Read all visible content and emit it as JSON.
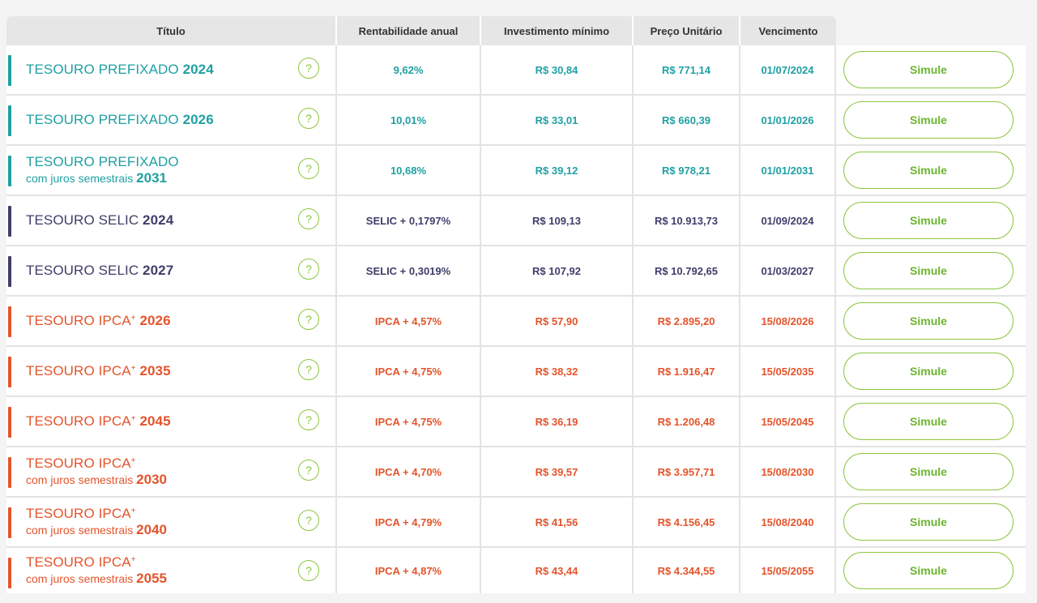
{
  "header": {
    "titulo": "Título",
    "rentabilidade": "Rentabilidade anual",
    "investimento": "Investimento mínimo",
    "preco": "Preço Unitário",
    "vencimento": "Vencimento"
  },
  "colors": {
    "prefixado": "#1fa0a3",
    "selic": "#3f3e6a",
    "ipca": "#e4542b",
    "accent_green": "#8dc63f"
  },
  "help_symbol": "?",
  "button_label": "Simule",
  "rows": [
    {
      "name": "TESOURO PREFIXADO",
      "sup": "",
      "sub": "",
      "year": "2024",
      "rent": "9,62%",
      "inv": "R$ 30,84",
      "price": "R$ 771,14",
      "venc": "01/07/2024",
      "type": "prefixado"
    },
    {
      "name": "TESOURO PREFIXADO",
      "sup": "",
      "sub": "",
      "year": "2026",
      "rent": "10,01%",
      "inv": "R$ 33,01",
      "price": "R$ 660,39",
      "venc": "01/01/2026",
      "type": "prefixado"
    },
    {
      "name": "TESOURO PREFIXADO",
      "sup": "",
      "sub": "com juros semestrais",
      "year": "2031",
      "rent": "10,68%",
      "inv": "R$ 39,12",
      "price": "R$ 978,21",
      "venc": "01/01/2031",
      "type": "prefixado"
    },
    {
      "name": "TESOURO SELIC",
      "sup": "",
      "sub": "",
      "year": "2024",
      "rent": "SELIC + 0,1797%",
      "inv": "R$ 109,13",
      "price": "R$ 10.913,73",
      "venc": "01/09/2024",
      "type": "selic"
    },
    {
      "name": "TESOURO SELIC",
      "sup": "",
      "sub": "",
      "year": "2027",
      "rent": "SELIC + 0,3019%",
      "inv": "R$ 107,92",
      "price": "R$ 10.792,65",
      "venc": "01/03/2027",
      "type": "selic"
    },
    {
      "name": "TESOURO IPCA",
      "sup": "+",
      "sub": "",
      "year": "2026",
      "rent": "IPCA + 4,57%",
      "inv": "R$ 57,90",
      "price": "R$ 2.895,20",
      "venc": "15/08/2026",
      "type": "ipca"
    },
    {
      "name": "TESOURO IPCA",
      "sup": "+",
      "sub": "",
      "year": "2035",
      "rent": "IPCA + 4,75%",
      "inv": "R$ 38,32",
      "price": "R$ 1.916,47",
      "venc": "15/05/2035",
      "type": "ipca"
    },
    {
      "name": "TESOURO IPCA",
      "sup": "+",
      "sub": "",
      "year": "2045",
      "rent": "IPCA + 4,75%",
      "inv": "R$ 36,19",
      "price": "R$ 1.206,48",
      "venc": "15/05/2045",
      "type": "ipca"
    },
    {
      "name": "TESOURO IPCA",
      "sup": "+",
      "sub": "com juros semestrais",
      "year": "2030",
      "rent": "IPCA + 4,70%",
      "inv": "R$ 39,57",
      "price": "R$ 3.957,71",
      "venc": "15/08/2030",
      "type": "ipca"
    },
    {
      "name": "TESOURO IPCA",
      "sup": "+",
      "sub": "com juros semestrais",
      "year": "2040",
      "rent": "IPCA + 4,79%",
      "inv": "R$ 41,56",
      "price": "R$ 4.156,45",
      "venc": "15/08/2040",
      "type": "ipca"
    },
    {
      "name": "TESOURO IPCA",
      "sup": "+",
      "sub": "com juros semestrais",
      "year": "2055",
      "rent": "IPCA + 4,87%",
      "inv": "R$ 43,44",
      "price": "R$ 4.344,55",
      "venc": "15/05/2055",
      "type": "ipca"
    }
  ]
}
